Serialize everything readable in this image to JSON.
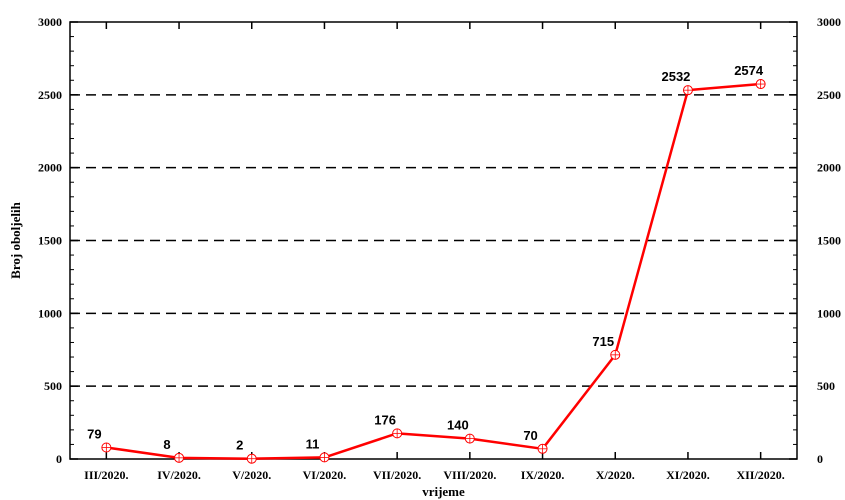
{
  "chart_data": {
    "type": "line",
    "categories": [
      "III/2020.",
      "IV/2020.",
      "V/2020.",
      "VI/2020.",
      "VII/2020.",
      "VIII/2020.",
      "IX/2020.",
      "X/2020.",
      "XI/2020.",
      "XII/2020."
    ],
    "series": [
      {
        "values": [
          79,
          8,
          2,
          11,
          176,
          140,
          70,
          715,
          2532,
          2574
        ]
      }
    ],
    "data_labels": [
      "79",
      "8",
      "2",
      "11",
      "176",
      "140",
      "70",
      "715",
      "2532",
      "2574"
    ],
    "xlabel": "vrijeme",
    "ylabel": "Broj oboljelih",
    "ylim": [
      0,
      3000
    ],
    "yticks": [
      "0",
      "500",
      "1000",
      "1500",
      "2000",
      "2500",
      "3000"
    ],
    "grid": "horizontal dashed",
    "right_axis_mirrored": true,
    "colors": {
      "line": "#ff0000",
      "marker": "#ff0000",
      "grid": "#000000",
      "axis": "#000000"
    }
  }
}
